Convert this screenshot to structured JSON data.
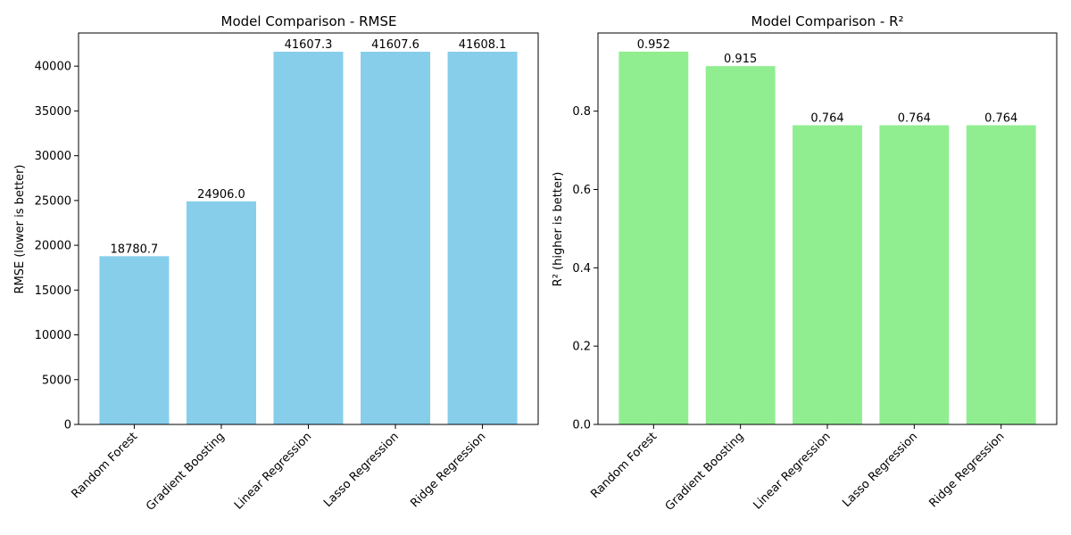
{
  "chart_data": [
    {
      "type": "bar",
      "title": "Model Comparison - RMSE",
      "xlabel": "",
      "ylabel": "RMSE (lower is better)",
      "categories": [
        "Random Forest",
        "Gradient Boosting",
        "Linear Regression",
        "Lasso Regression",
        "Ridge Regression"
      ],
      "values": [
        18780.7,
        24906.0,
        41607.3,
        41607.6,
        41608.1
      ],
      "value_labels": [
        "18780.7",
        "24906.0",
        "41607.3",
        "41607.6",
        "41608.1"
      ],
      "ylim": [
        0,
        43700
      ],
      "yticks": [
        0,
        5000,
        10000,
        15000,
        20000,
        25000,
        30000,
        35000,
        40000
      ],
      "ytick_labels": [
        "0",
        "5000",
        "10000",
        "15000",
        "20000",
        "25000",
        "30000",
        "35000",
        "40000"
      ],
      "bar_color": "#87ceeb",
      "grid": false,
      "legend": "none"
    },
    {
      "type": "bar",
      "title": "Model Comparison - R²",
      "xlabel": "",
      "ylabel": "R² (higher is better)",
      "categories": [
        "Random Forest",
        "Gradient Boosting",
        "Linear Regression",
        "Lasso Regression",
        "Ridge Regression"
      ],
      "values": [
        0.952,
        0.915,
        0.764,
        0.764,
        0.764
      ],
      "value_labels": [
        "0.952",
        "0.915",
        "0.764",
        "0.764",
        "0.764"
      ],
      "ylim": [
        0,
        0.9996
      ],
      "yticks": [
        0,
        0.2,
        0.4,
        0.6,
        0.8
      ],
      "ytick_labels": [
        "0.0",
        "0.2",
        "0.4",
        "0.6",
        "0.8"
      ],
      "bar_color": "#90ee90",
      "grid": false,
      "legend": "none"
    }
  ]
}
